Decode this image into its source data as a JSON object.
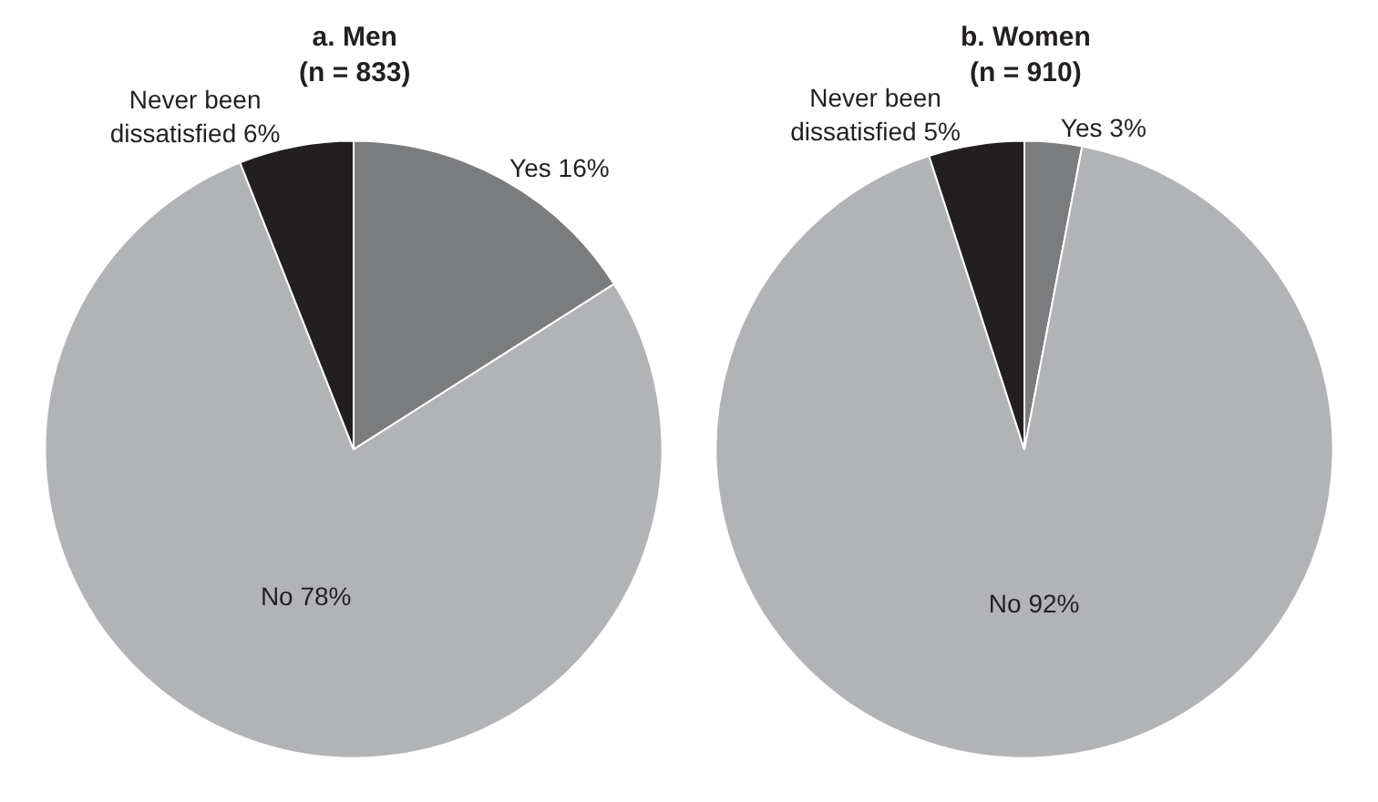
{
  "chart_data": [
    {
      "type": "pie",
      "title": "a. Men\n(n = 833)",
      "categories": [
        "Yes",
        "No",
        "Never been dissatisfied"
      ],
      "values": [
        16,
        78,
        6
      ],
      "value_labels": [
        "16%",
        "78%",
        "6%"
      ],
      "colors": [
        "#7b7c7e",
        "#b1b3b6",
        "#231f20"
      ]
    },
    {
      "type": "pie",
      "title": "b. Women\n(n = 910)",
      "categories": [
        "Yes",
        "No",
        "Never been dissatisfied"
      ],
      "values": [
        3,
        92,
        5
      ],
      "value_labels": [
        "3%",
        "92%",
        "5%"
      ],
      "colors": [
        "#7b7c7e",
        "#b1b3b6",
        "#231f20"
      ]
    }
  ]
}
